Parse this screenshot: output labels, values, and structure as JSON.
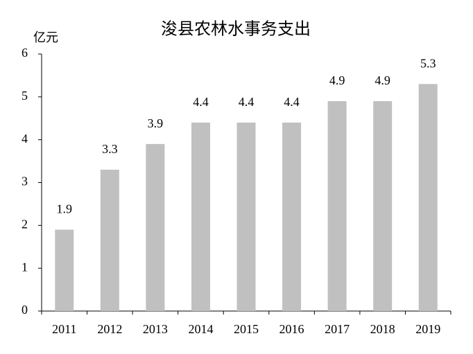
{
  "chart_data": {
    "type": "bar",
    "title": "浚县农林水事务支出",
    "y_unit": "亿元",
    "categories": [
      "2011",
      "2012",
      "2013",
      "2014",
      "2015",
      "2016",
      "2017",
      "2018",
      "2019"
    ],
    "values": [
      1.9,
      3.3,
      3.9,
      4.4,
      4.4,
      4.4,
      4.9,
      4.9,
      5.3
    ],
    "color": "#c0c0c0",
    "ylim": [
      0,
      6
    ],
    "yticks": [
      0,
      1,
      2,
      3,
      4,
      5,
      6
    ],
    "grid": false
  }
}
